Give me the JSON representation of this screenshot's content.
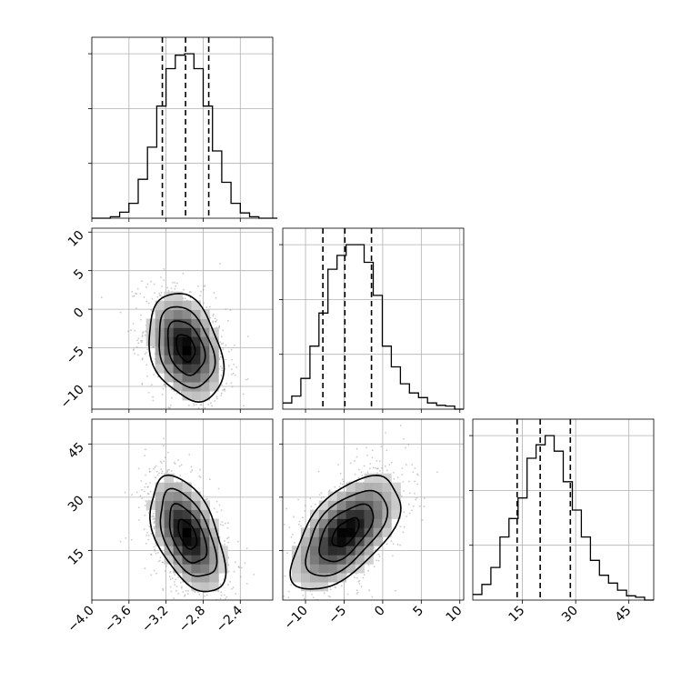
{
  "chart_data": {
    "type": "corner",
    "parameters": [
      {
        "ticks": [
          -4.0,
          -3.6,
          -3.2,
          -2.8,
          -2.4
        ],
        "tick_labels": [
          "−4.0",
          "−3.6",
          "−3.2",
          "−2.8",
          "−2.4"
        ],
        "range": [
          -4.0,
          -2.05
        ]
      },
      {
        "ticks": [
          -10,
          -5,
          0,
          5,
          10
        ],
        "tick_labels": [
          "−10",
          "−5",
          "0",
          "5",
          "10"
        ],
        "range": [
          -12.95,
          10.5
        ]
      },
      {
        "ticks": [
          15,
          30,
          45
        ],
        "tick_labels": [
          "15",
          "30",
          "45"
        ],
        "range": [
          1.0,
          52.0
        ]
      }
    ],
    "marginals": [
      {
        "param": 0,
        "quantiles": [
          -3.24,
          -2.99,
          -2.74
        ],
        "bins": [
          -4.0,
          -3.9,
          -3.8,
          -3.7,
          -3.6,
          -3.5,
          -3.4,
          -3.3,
          -3.2,
          -3.1,
          -3.0,
          -2.9,
          -2.8,
          -2.7,
          -2.6,
          -2.5,
          -2.4,
          -2.3,
          -2.2,
          -2.1,
          -2.0
        ],
        "counts": [
          0,
          0,
          2,
          8,
          20,
          52,
          95,
          150,
          200,
          218,
          220,
          200,
          150,
          90,
          48,
          20,
          7,
          2,
          0,
          0
        ]
      },
      {
        "param": 1,
        "quantiles": [
          -7.75,
          -4.9,
          -1.45
        ],
        "bins": [
          -12.95,
          -11.78,
          -10.6,
          -9.43,
          -8.26,
          -7.09,
          -5.91,
          -4.74,
          -3.57,
          -2.4,
          -1.22,
          -0.05,
          1.12,
          2.3,
          3.47,
          4.64,
          5.81,
          6.99,
          8.16,
          9.33,
          10.5
        ],
        "counts": [
          8,
          17,
          40,
          82,
          125,
          182,
          200,
          214,
          214,
          191,
          148,
          82,
          55,
          33,
          21,
          15,
          8,
          5,
          4,
          0
        ]
      },
      {
        "param": 2,
        "quantiles": [
          13.5,
          20.0,
          28.5
        ],
        "bins": [
          1.0,
          3.55,
          6.1,
          8.65,
          11.2,
          13.75,
          16.3,
          18.85,
          21.4,
          23.95,
          26.5,
          29.05,
          31.6,
          34.15,
          36.7,
          39.25,
          41.8,
          44.35,
          46.9,
          49.45,
          52.0
        ],
        "counts": [
          8,
          22,
          46,
          89,
          115,
          144,
          200,
          219,
          232,
          210,
          167,
          127,
          89,
          56,
          35,
          24,
          14,
          6,
          4,
          0
        ]
      }
    ],
    "joints": [
      {
        "x": 0,
        "y": 1,
        "center": [
          -2.99,
          -5.0
        ],
        "sd": [
          0.2,
          3.5
        ],
        "rho": -0.3,
        "contour_levels": [
          0.5,
          1.0,
          1.5,
          2.0
        ]
      },
      {
        "x": 0,
        "y": 2,
        "center": [
          -2.97,
          19.5
        ],
        "sd": [
          0.2,
          8.2
        ],
        "rho": -0.5,
        "contour_levels": [
          0.5,
          1.0,
          1.5,
          2.0
        ]
      },
      {
        "x": 1,
        "y": 2,
        "center": [
          -4.8,
          20.0
        ],
        "sd": [
          3.5,
          8.0
        ],
        "rho": 0.58,
        "contour_levels": [
          0.5,
          1.0,
          1.5,
          2.0
        ]
      }
    ]
  },
  "colors": {
    "line": "#000000",
    "grid": "#b0b0b0",
    "points": "#8a8a8a",
    "background": "#ffffff"
  }
}
